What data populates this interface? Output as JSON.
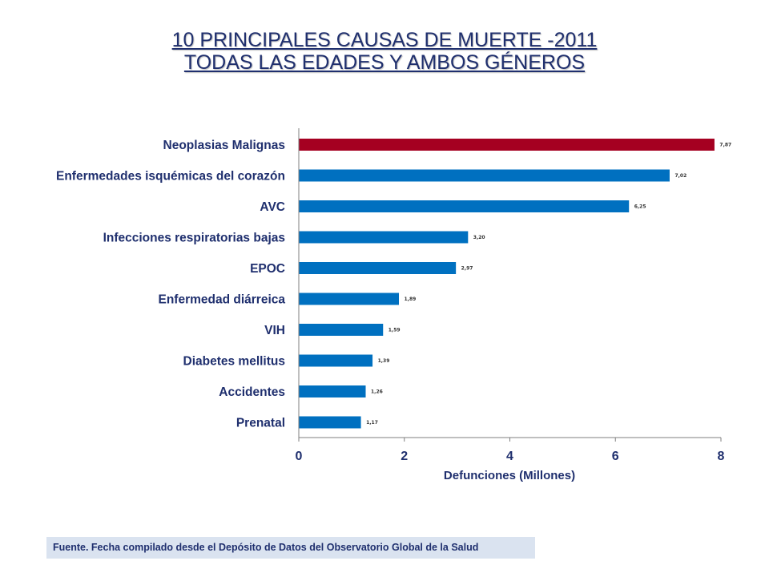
{
  "title": {
    "line1": "10 PRINCIPALES CAUSAS DE MUERTE -2011",
    "line2": "TODAS LAS EDADES Y AMBOS GÉNEROS"
  },
  "chart_data": {
    "type": "bar",
    "orientation": "horizontal",
    "categories": [
      "Neoplasias Malignas",
      "Enfermedades isquémicas del corazón",
      "AVC",
      "Infecciones respiratorias bajas",
      "EPOC",
      "Enfermedad diárreica",
      "VIH",
      "Diabetes mellitus",
      "Accidentes",
      "Prenatal"
    ],
    "values": [
      7.87,
      7.02,
      6.25,
      3.2,
      2.97,
      1.89,
      1.59,
      1.39,
      1.26,
      1.17
    ],
    "data_labels": [
      "7,87",
      "7,02",
      "6,25",
      "3,20",
      "2,97",
      "1,89",
      "1,59",
      "1,39",
      "1,26",
      "1,17"
    ],
    "bar_colors": [
      "#a50021",
      "#0070c0",
      "#0070c0",
      "#0070c0",
      "#0070c0",
      "#0070c0",
      "#0070c0",
      "#0070c0",
      "#0070c0",
      "#0070c0"
    ],
    "xlabel": "Defunciones (Millones)",
    "ylabel": "",
    "xlim": [
      0,
      8
    ],
    "xticks": [
      0,
      2,
      4,
      6,
      8
    ],
    "grid": false,
    "legend": "none"
  },
  "source": {
    "text": "Fuente. Fecha compilado desde el Depósito de Datos del Observatorio Global de la Salud"
  }
}
